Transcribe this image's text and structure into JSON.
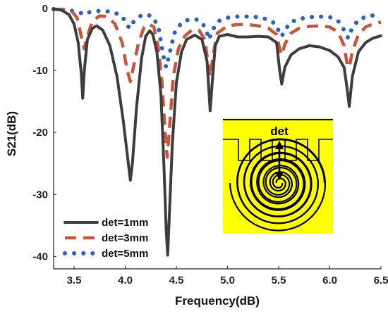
{
  "chart_data": {
    "type": "line",
    "xlabel": "Frequency(dB)",
    "ylabel": "S21(dB)",
    "xlim": [
      3.3,
      6.5
    ],
    "ylim": [
      -42,
      0
    ],
    "xticks": [
      "3.5",
      "4.0",
      "4.5",
      "5.0",
      "5.5",
      "6.0",
      "6.5"
    ],
    "yticks": [
      "0",
      "-10",
      "-20",
      "-30",
      "-40"
    ],
    "legend_position": "bottom-left",
    "series": [
      {
        "name": "det=1mm",
        "color": "#3d3d3d",
        "style": "solid",
        "points": [
          [
            3.3,
            -0.1
          ],
          [
            3.38,
            -0.3
          ],
          [
            3.45,
            -1.0
          ],
          [
            3.5,
            -2.5
          ],
          [
            3.54,
            -5.5
          ],
          [
            3.57,
            -10.5
          ],
          [
            3.585,
            -14.5
          ],
          [
            3.6,
            -10.0
          ],
          [
            3.63,
            -5.0
          ],
          [
            3.68,
            -3.2
          ],
          [
            3.72,
            -2.8
          ],
          [
            3.78,
            -3.5
          ],
          [
            3.85,
            -6.0
          ],
          [
            3.92,
            -11.0
          ],
          [
            3.98,
            -18.0
          ],
          [
            4.03,
            -25.0
          ],
          [
            4.05,
            -27.7
          ],
          [
            4.07,
            -25.0
          ],
          [
            4.11,
            -16.0
          ],
          [
            4.16,
            -8.0
          ],
          [
            4.2,
            -4.5
          ],
          [
            4.24,
            -3.6
          ],
          [
            4.27,
            -4.2
          ],
          [
            4.31,
            -7.0
          ],
          [
            4.35,
            -14.0
          ],
          [
            4.38,
            -26.0
          ],
          [
            4.4,
            -35.5
          ],
          [
            4.415,
            -39.8
          ],
          [
            4.43,
            -34.0
          ],
          [
            4.46,
            -22.0
          ],
          [
            4.5,
            -12.0
          ],
          [
            4.55,
            -7.0
          ],
          [
            4.6,
            -5.0
          ],
          [
            4.68,
            -4.3
          ],
          [
            4.75,
            -5.0
          ],
          [
            4.8,
            -8.5
          ],
          [
            4.83,
            -16.5
          ],
          [
            4.85,
            -12.0
          ],
          [
            4.88,
            -6.0
          ],
          [
            4.92,
            -4.5
          ],
          [
            5.0,
            -4.2
          ],
          [
            5.1,
            -4.6
          ],
          [
            5.2,
            -4.6
          ],
          [
            5.3,
            -4.5
          ],
          [
            5.4,
            -4.6
          ],
          [
            5.48,
            -5.5
          ],
          [
            5.51,
            -10.0
          ],
          [
            5.53,
            -12.2
          ],
          [
            5.56,
            -9.5
          ],
          [
            5.62,
            -7.5
          ],
          [
            5.7,
            -6.5
          ],
          [
            5.8,
            -6.0
          ],
          [
            5.9,
            -6.2
          ],
          [
            6.0,
            -6.8
          ],
          [
            6.08,
            -7.8
          ],
          [
            6.14,
            -9.5
          ],
          [
            6.17,
            -13.0
          ],
          [
            6.19,
            -15.8
          ],
          [
            6.22,
            -11.0
          ],
          [
            6.28,
            -7.0
          ],
          [
            6.35,
            -5.5
          ],
          [
            6.42,
            -4.8
          ],
          [
            6.5,
            -4.4
          ]
        ]
      },
      {
        "name": "det=3mm",
        "color": "#c8553d",
        "style": "dashed",
        "points": [
          [
            3.3,
            -0.1
          ],
          [
            3.4,
            -0.2
          ],
          [
            3.48,
            -0.5
          ],
          [
            3.53,
            -1.5
          ],
          [
            3.57,
            -4.5
          ],
          [
            3.6,
            -6.5
          ],
          [
            3.63,
            -4.5
          ],
          [
            3.68,
            -2.0
          ],
          [
            3.75,
            -1.2
          ],
          [
            3.82,
            -1.3
          ],
          [
            3.9,
            -2.5
          ],
          [
            3.97,
            -5.5
          ],
          [
            4.02,
            -10.0
          ],
          [
            4.05,
            -11.8
          ],
          [
            4.08,
            -9.5
          ],
          [
            4.13,
            -5.5
          ],
          [
            4.18,
            -3.2
          ],
          [
            4.23,
            -2.5
          ],
          [
            4.28,
            -3.0
          ],
          [
            4.32,
            -6.0
          ],
          [
            4.36,
            -12.0
          ],
          [
            4.39,
            -20.0
          ],
          [
            4.41,
            -24.0
          ],
          [
            4.43,
            -20.0
          ],
          [
            4.47,
            -11.0
          ],
          [
            4.52,
            -6.5
          ],
          [
            4.58,
            -4.5
          ],
          [
            4.65,
            -3.5
          ],
          [
            4.72,
            -3.5
          ],
          [
            4.78,
            -5.0
          ],
          [
            4.81,
            -9.0
          ],
          [
            4.83,
            -11.0
          ],
          [
            4.86,
            -7.5
          ],
          [
            4.9,
            -4.0
          ],
          [
            5.0,
            -2.8
          ],
          [
            5.1,
            -2.6
          ],
          [
            5.2,
            -2.6
          ],
          [
            5.3,
            -2.8
          ],
          [
            5.4,
            -3.2
          ],
          [
            5.48,
            -4.2
          ],
          [
            5.51,
            -6.5
          ],
          [
            5.53,
            -7.5
          ],
          [
            5.56,
            -5.8
          ],
          [
            5.62,
            -4.0
          ],
          [
            5.7,
            -3.2
          ],
          [
            5.8,
            -2.9
          ],
          [
            5.9,
            -2.8
          ],
          [
            6.0,
            -3.0
          ],
          [
            6.08,
            -3.8
          ],
          [
            6.14,
            -6.0
          ],
          [
            6.17,
            -9.0
          ],
          [
            6.19,
            -9.5
          ],
          [
            6.22,
            -7.0
          ],
          [
            6.28,
            -4.2
          ],
          [
            6.35,
            -3.0
          ],
          [
            6.42,
            -2.5
          ],
          [
            6.5,
            -2.2
          ]
        ]
      },
      {
        "name": "det=5mm",
        "color": "#2e5fc1",
        "style": "dotted",
        "points": [
          [
            3.3,
            -0.1
          ],
          [
            3.45,
            -0.3
          ],
          [
            3.55,
            -0.6
          ],
          [
            3.6,
            -1.0
          ],
          [
            3.65,
            -0.6
          ],
          [
            3.75,
            -0.4
          ],
          [
            3.85,
            -0.5
          ],
          [
            3.95,
            -1.0
          ],
          [
            4.0,
            -2.0
          ],
          [
            4.04,
            -3.2
          ],
          [
            4.08,
            -2.2
          ],
          [
            4.15,
            -1.2
          ],
          [
            4.22,
            -1.0
          ],
          [
            4.28,
            -1.5
          ],
          [
            4.33,
            -3.5
          ],
          [
            4.37,
            -7.5
          ],
          [
            4.4,
            -9.5
          ],
          [
            4.43,
            -7.5
          ],
          [
            4.48,
            -4.0
          ],
          [
            4.55,
            -2.3
          ],
          [
            4.62,
            -1.8
          ],
          [
            4.7,
            -1.8
          ],
          [
            4.76,
            -2.5
          ],
          [
            4.8,
            -4.0
          ],
          [
            4.82,
            -5.0
          ],
          [
            4.85,
            -3.5
          ],
          [
            4.92,
            -2.0
          ],
          [
            5.0,
            -1.5
          ],
          [
            5.1,
            -1.3
          ],
          [
            5.2,
            -1.3
          ],
          [
            5.3,
            -1.4
          ],
          [
            5.4,
            -1.8
          ],
          [
            5.47,
            -2.5
          ],
          [
            5.51,
            -4.0
          ],
          [
            5.53,
            -4.5
          ],
          [
            5.56,
            -3.5
          ],
          [
            5.62,
            -2.2
          ],
          [
            5.7,
            -1.7
          ],
          [
            5.8,
            -1.4
          ],
          [
            5.9,
            -1.3
          ],
          [
            6.0,
            -1.4
          ],
          [
            6.08,
            -2.0
          ],
          [
            6.14,
            -3.5
          ],
          [
            6.18,
            -4.8
          ],
          [
            6.21,
            -3.5
          ],
          [
            6.28,
            -1.8
          ],
          [
            6.38,
            -1.2
          ],
          [
            6.5,
            -1.0
          ]
        ]
      }
    ]
  },
  "inset": {
    "label": "det",
    "background_color": "#ffff00",
    "line_color": "#000000"
  }
}
